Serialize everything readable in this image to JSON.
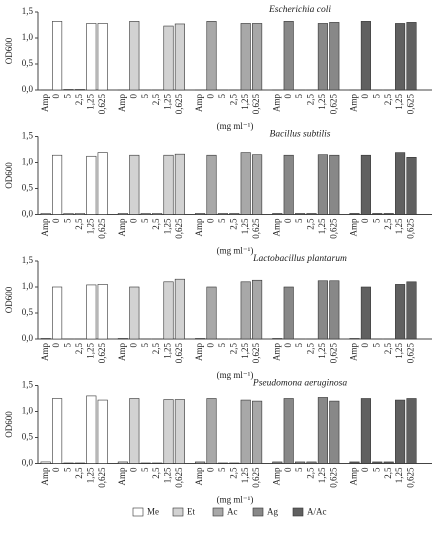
{
  "chart_data": [
    {
      "type": "bar",
      "title": "Escherichia coli",
      "y_label": "OD600",
      "x_label": "(mg ml⁻¹)",
      "categories": [
        "Amp",
        "0",
        "5",
        "2,5",
        "1,25",
        "0,625"
      ],
      "ylim": [
        0,
        1.5
      ],
      "yticks": [
        {
          "value": 0,
          "label": "0,0"
        },
        {
          "value": 0.5,
          "label": "0,5"
        },
        {
          "value": 1,
          "label": "1,0"
        },
        {
          "value": 1.5,
          "label": "1,5"
        }
      ],
      "series": [
        {
          "name": "Me",
          "color": "#ffffff",
          "values": [
            0,
            1.32,
            0.01,
            0.01,
            1.28,
            1.28
          ]
        },
        {
          "name": "Et",
          "color": "#d2d2d2",
          "values": [
            0,
            1.32,
            0,
            0,
            1.23,
            1.27
          ]
        },
        {
          "name": "Ac",
          "color": "#a8a8a8",
          "values": [
            0,
            1.32,
            0,
            0,
            1.28,
            1.28
          ]
        },
        {
          "name": "Ag",
          "color": "#888888",
          "values": [
            0,
            1.32,
            0,
            0,
            1.28,
            1.3
          ]
        },
        {
          "name": "A/Ac",
          "color": "#606060",
          "values": [
            0,
            1.32,
            0,
            0,
            1.28,
            1.3
          ]
        }
      ]
    },
    {
      "type": "bar",
      "title": "Bacillus subtilis",
      "y_label": "OD600",
      "x_label": "(mg ml⁻¹)",
      "categories": [
        "Amp",
        "0",
        "5",
        "2,5",
        "1,25",
        "0,625"
      ],
      "ylim": [
        0,
        1.5
      ],
      "yticks": [
        {
          "value": 0,
          "label": "0,0"
        },
        {
          "value": 0.5,
          "label": "0,5"
        },
        {
          "value": 1,
          "label": "1,0"
        },
        {
          "value": 1.5,
          "label": "1,5"
        }
      ],
      "series": [
        {
          "values": [
            0.02,
            1.14,
            0.02,
            0.02,
            1.12,
            1.19
          ]
        },
        {
          "values": [
            0.02,
            1.14,
            0.02,
            0.02,
            1.14,
            1.16
          ]
        },
        {
          "values": [
            0.02,
            1.14,
            0.02,
            0.02,
            1.19,
            1.15
          ]
        },
        {
          "values": [
            0.02,
            1.14,
            0.02,
            0.02,
            1.15,
            1.14
          ]
        },
        {
          "values": [
            0.02,
            1.14,
            0.02,
            0.02,
            1.19,
            1.1
          ]
        }
      ]
    },
    {
      "type": "bar",
      "title": "Lactobacillus plantarum",
      "y_label": "OD600",
      "x_label": "(mg ml⁻¹)",
      "categories": [
        "Amp",
        "0",
        "5",
        "2,5",
        "1,25",
        "0,625"
      ],
      "ylim": [
        0,
        1.5
      ],
      "yticks": [
        {
          "value": 0,
          "label": "0,0"
        },
        {
          "value": 0.5,
          "label": "0,5"
        },
        {
          "value": 1,
          "label": "1,0"
        },
        {
          "value": 1.5,
          "label": "1,5"
        }
      ],
      "series": [
        {
          "values": [
            0.01,
            1.0,
            0,
            0,
            1.04,
            1.05
          ]
        },
        {
          "values": [
            0.01,
            1.0,
            0,
            0,
            1.1,
            1.15
          ]
        },
        {
          "values": [
            0.01,
            1.0,
            0,
            0,
            1.1,
            1.13
          ]
        },
        {
          "values": [
            0.01,
            1.0,
            0,
            0,
            1.12,
            1.12
          ]
        },
        {
          "values": [
            0.01,
            1.0,
            0,
            0,
            1.05,
            1.1
          ]
        }
      ]
    },
    {
      "type": "bar",
      "title": "Pseudomona aeruginosa",
      "y_label": "OD600",
      "x_label": "(mg ml⁻¹)",
      "categories": [
        "Amp",
        "0",
        "5",
        "2,5",
        "1,25",
        "0,625"
      ],
      "ylim": [
        0,
        1.5
      ],
      "yticks": [
        {
          "value": 0,
          "label": "0,0"
        },
        {
          "value": 0.5,
          "label": "0,5"
        },
        {
          "value": 1,
          "label": "1,0"
        },
        {
          "value": 1.5,
          "label": "1,5"
        }
      ],
      "series": [
        {
          "values": [
            0.03,
            1.25,
            0.01,
            0.01,
            1.3,
            1.22
          ]
        },
        {
          "values": [
            0.03,
            1.25,
            0.01,
            0.01,
            1.23,
            1.23
          ]
        },
        {
          "values": [
            0.03,
            1.25,
            0.01,
            0.01,
            1.22,
            1.2
          ]
        },
        {
          "values": [
            0.03,
            1.25,
            0.03,
            0.03,
            1.27,
            1.2
          ]
        },
        {
          "values": [
            0.03,
            1.25,
            0.03,
            0.03,
            1.22,
            1.25
          ]
        }
      ]
    }
  ]
}
